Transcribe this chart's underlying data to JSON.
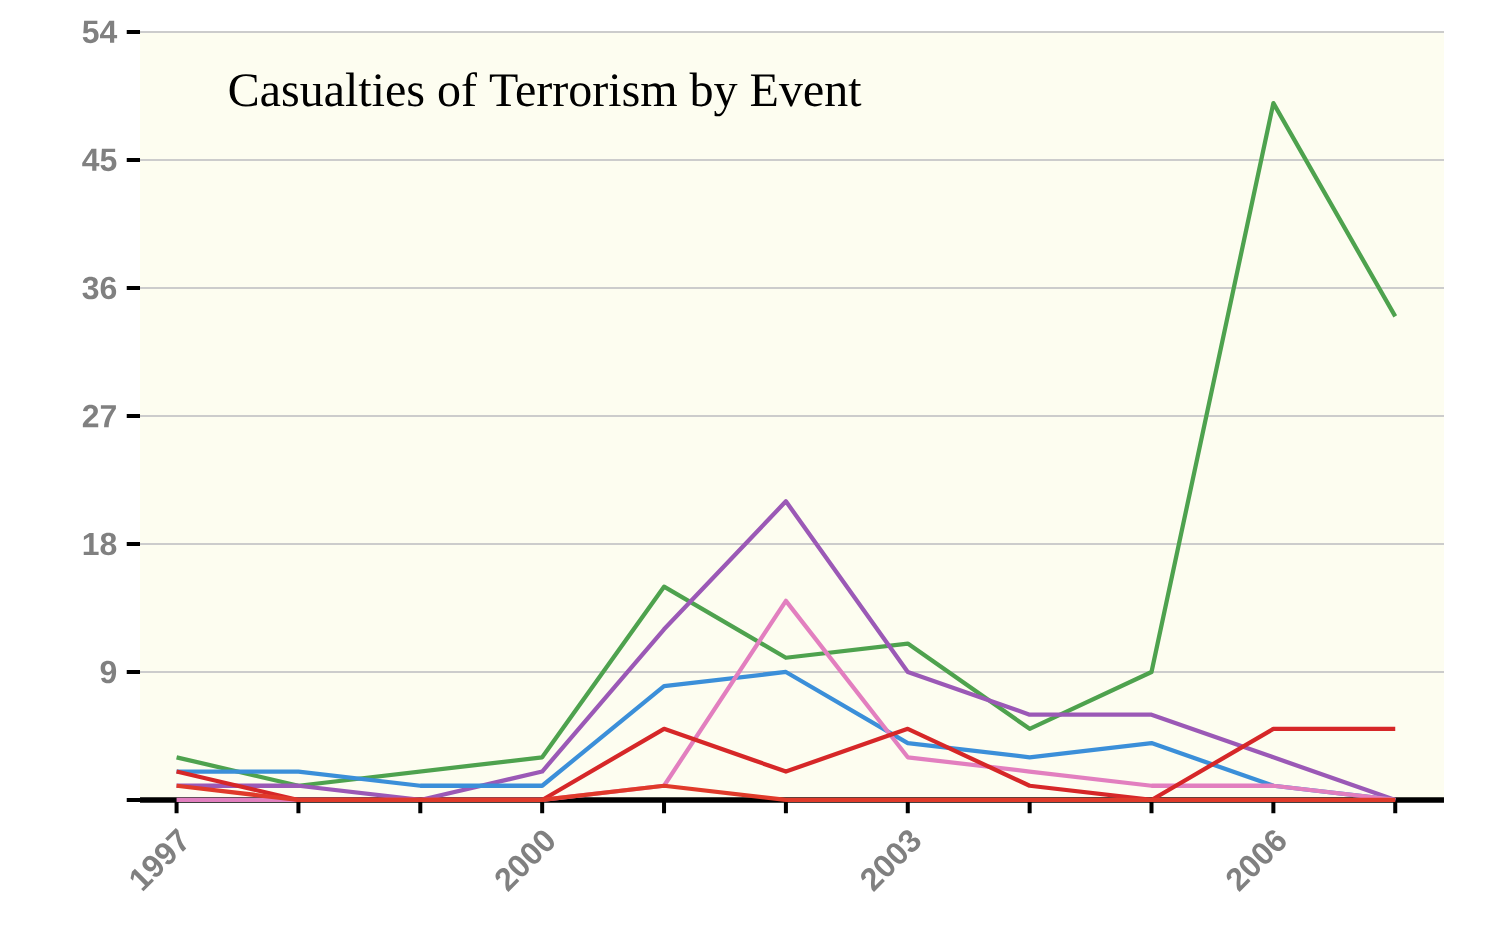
{
  "chart_data": {
    "type": "line",
    "title": "Casualties of Terrorism by Event",
    "x": [
      1997,
      1998,
      1999,
      2000,
      2001,
      2002,
      2003,
      2004,
      2005,
      2006,
      2007
    ],
    "series": [
      {
        "color": "#4ea24e",
        "values": [
          3,
          1,
          2,
          3,
          15,
          10,
          11,
          5,
          9,
          49,
          34
        ]
      },
      {
        "color": "#9b59b6",
        "values": [
          1,
          1,
          0,
          2,
          12,
          21,
          9,
          6,
          6,
          3,
          0
        ]
      },
      {
        "color": "#3b8fd9",
        "values": [
          2,
          2,
          1,
          1,
          8,
          9,
          4,
          3,
          4,
          1,
          0
        ]
      },
      {
        "color": "#e27fbf",
        "values": [
          0,
          0,
          0,
          0,
          1,
          14,
          3,
          2,
          1,
          1,
          0
        ]
      },
      {
        "color": "#d62728",
        "values": [
          2,
          0,
          0,
          0,
          5,
          2,
          5,
          1,
          0,
          5,
          5
        ]
      },
      {
        "color": "#e03a2a",
        "values": [
          1,
          0,
          0,
          0,
          1,
          0,
          0,
          0,
          0,
          0,
          0
        ]
      }
    ],
    "xlim": [
      1996.7,
      2007.4
    ],
    "ylim": [
      0,
      54
    ],
    "xticks": [
      1997,
      {
        "value": 1998,
        "label": null
      },
      {
        "value": 1999,
        "label": null
      },
      2000,
      {
        "value": 2001,
        "label": null
      },
      {
        "value": 2002,
        "label": null
      },
      2003,
      {
        "value": 2004,
        "label": null
      },
      {
        "value": 2005,
        "label": null
      },
      2006,
      {
        "value": 2007,
        "label": null
      }
    ],
    "yticks": [
      {
        "value": 0,
        "label": null
      },
      9,
      18,
      27,
      36,
      45,
      54
    ],
    "grid": "y",
    "marker": "none",
    "line_style": "solid"
  }
}
